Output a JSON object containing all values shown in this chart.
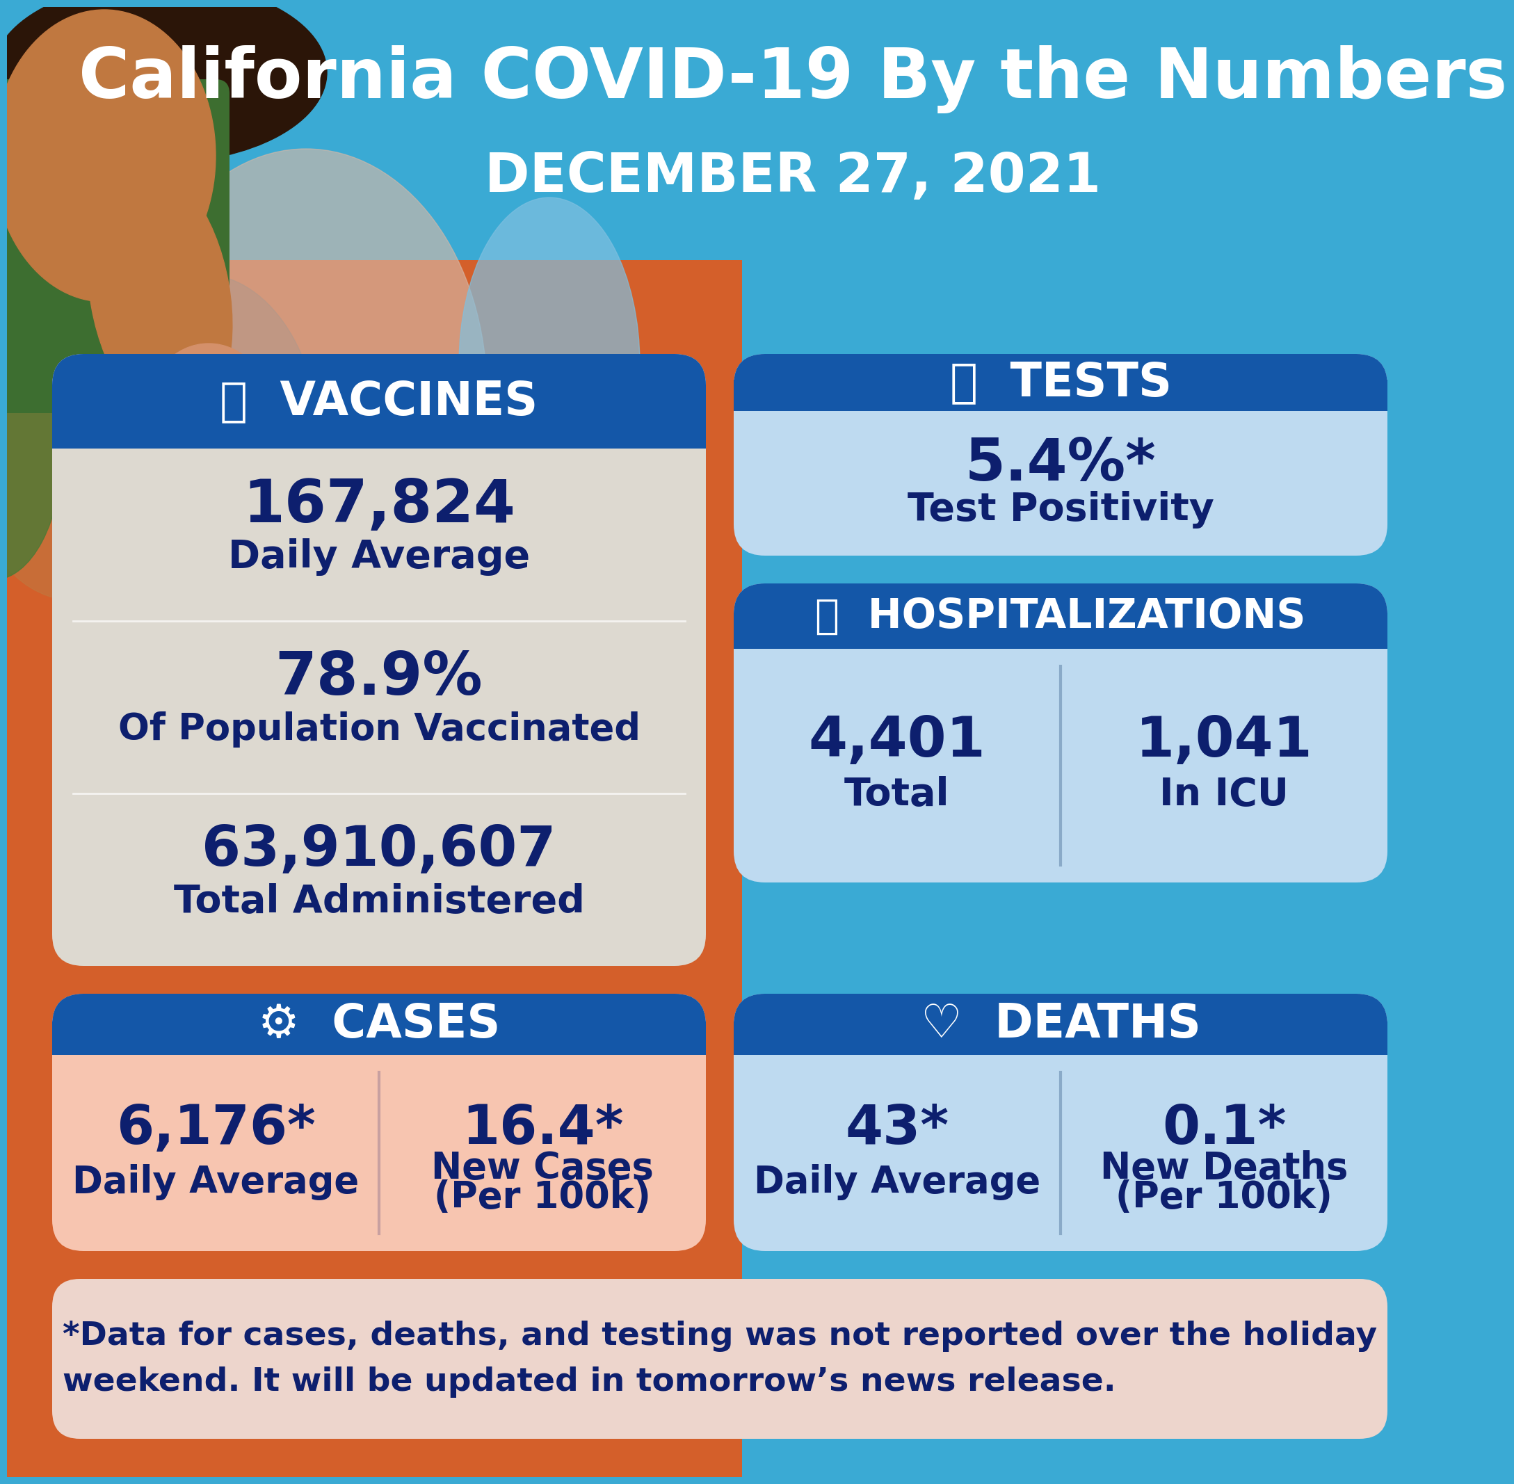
{
  "title": "California COVID-19 By the Numbers",
  "subtitle": "DECEMBER 27, 2021",
  "bg_color": "#3AAAD4",
  "bg_left_color": "#D45F2A",
  "dark_blue": "#0D1F6E",
  "header_blue": "#1457A8",
  "white": "#FFFFFF",
  "vaccines_card_color": "#DDD9D0",
  "tests_card_color": "#BEDAF0",
  "hosp_card_color": "#BEDAF0",
  "cases_card_color": "#F7C5B0",
  "deaths_card_color": "#BEDAF0",
  "footnote_card_color": "#EDD5CC",
  "divider_color": "#FFFFFF",
  "vaccines": {
    "header": "VACCINES",
    "value1": "167,824",
    "label1": "Daily Average",
    "value2": "78.9%",
    "label2": "Of Population Vaccinated",
    "value3": "63,910,607",
    "label3": "Total Administered"
  },
  "tests": {
    "header": "TESTS",
    "value1": "5.4%*",
    "label1": "Test Positivity"
  },
  "hospitalizations": {
    "header": "HOSPITALIZATIONS",
    "value1": "4,401",
    "label1": "Total",
    "value2": "1,041",
    "label2": "In ICU"
  },
  "cases": {
    "header": "CASES",
    "value1": "6,176*",
    "label1": "Daily Average",
    "value2": "16.4*",
    "label2": "New Cases\n(Per 100k)"
  },
  "deaths": {
    "header": "DEATHS",
    "value1": "43*",
    "label1": "Daily Average",
    "value2": "0.1*",
    "label2": "New Deaths\n(Per 100k)"
  },
  "footnote": "*Data for cases, deaths, and testing was not reported over the holiday\nweekend. It will be updated in tomorrow’s news release."
}
